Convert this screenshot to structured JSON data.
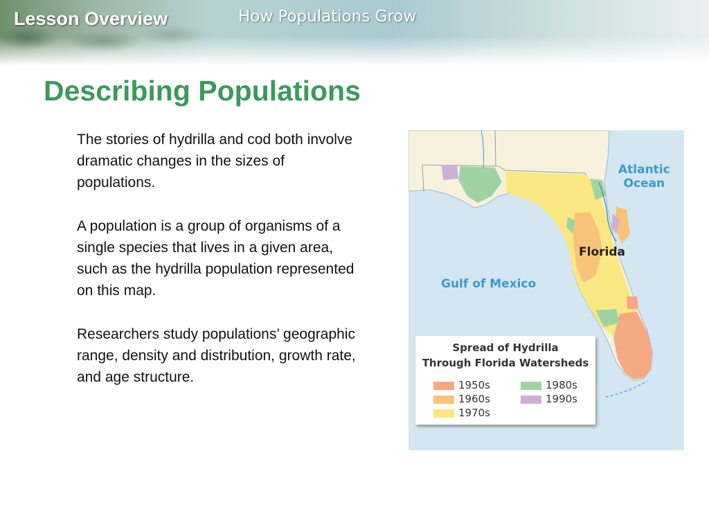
{
  "header": {
    "section_label": "Lesson Overview",
    "unit_title": "How Populations Grow"
  },
  "slide": {
    "title": "Describing Populations",
    "paragraphs": [
      "The stories of hydrilla and cod both involve dramatic changes in the sizes of populations.",
      "A population is a group of organisms of a single species that lives in a given area, such as the hydrilla population represented on this map.",
      "Researchers study populations’ geographic range, density and distribution, growth rate, and age structure."
    ]
  },
  "map": {
    "labels": {
      "atlantic_line1": "Atlantic",
      "atlantic_line2": "Ocean",
      "gulf": "Gulf of Mexico",
      "florida": "Florida"
    },
    "legend": {
      "title_line1": "Spread of Hydrilla",
      "title_line2": "Through Florida Watersheds",
      "items": [
        {
          "label": "1950s",
          "color": "#f4a982"
        },
        {
          "label": "1960s",
          "color": "#f8c37a"
        },
        {
          "label": "1970s",
          "color": "#fbe77c"
        },
        {
          "label": "1980s",
          "color": "#9fd3a3"
        },
        {
          "label": "1990s",
          "color": "#cdb0d8"
        }
      ]
    },
    "colors": {
      "water": "#d4e6f1",
      "land": "#f7f1dc",
      "label": "#3a9bc6"
    }
  },
  "colors": {
    "title": "#3a9a5c",
    "body_text": "#111111"
  }
}
